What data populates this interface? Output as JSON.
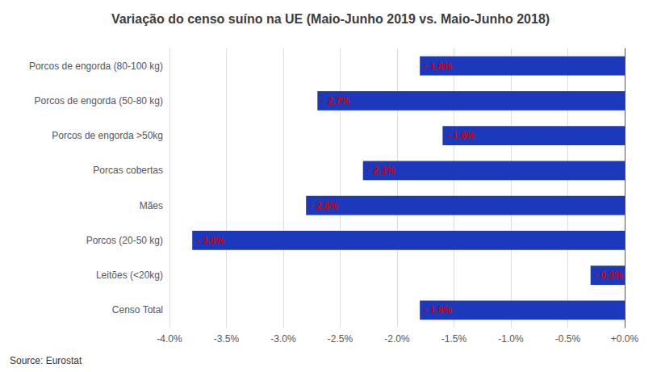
{
  "chart_data": {
    "type": "bar",
    "orientation": "horizontal",
    "title": "Variação do censo suíno na UE (Maio-Junho 2019 vs. Maio-Junho 2018)",
    "categories": [
      "Censo Total",
      "Leitões (<20kg)",
      "Porcos (20-50 kg)",
      "Mães",
      "Porcas cobertas",
      "Porcos de engorda >50kg",
      "Porcos de engorda (50-80 kg)",
      "Porcos de engorda (80-100 kg)"
    ],
    "values": [
      -1.8,
      -0.3,
      -3.8,
      -2.8,
      -2.3,
      -1.6,
      -2.7,
      -1.8
    ],
    "value_labels": [
      "- 1.8%",
      "- 0.3%",
      "- 3.8%",
      "- 2.8%",
      "- 2.3%",
      "- 1.6%",
      "- 2.7%",
      "- 1.8%"
    ],
    "data_labels": true,
    "color": "#1c39bb",
    "xlim": [
      -4.0,
      0.0
    ],
    "xticks": [
      {
        "value": -4.0,
        "label": "-4.0%"
      },
      {
        "value": -3.5,
        "label": "-3.5%"
      },
      {
        "value": -3.0,
        "label": "-3.0%"
      },
      {
        "value": -2.5,
        "label": "-2.5%"
      },
      {
        "value": -2.0,
        "label": "-2.0%"
      },
      {
        "value": -1.5,
        "label": "-1.5%"
      },
      {
        "value": -1.0,
        "label": "-1.0%"
      },
      {
        "value": -0.5,
        "label": "-0.5%"
      },
      {
        "value": 0.0,
        "label": "+0.0%"
      }
    ],
    "grid": true,
    "annotations": [
      "Source: Eurostat"
    ]
  }
}
